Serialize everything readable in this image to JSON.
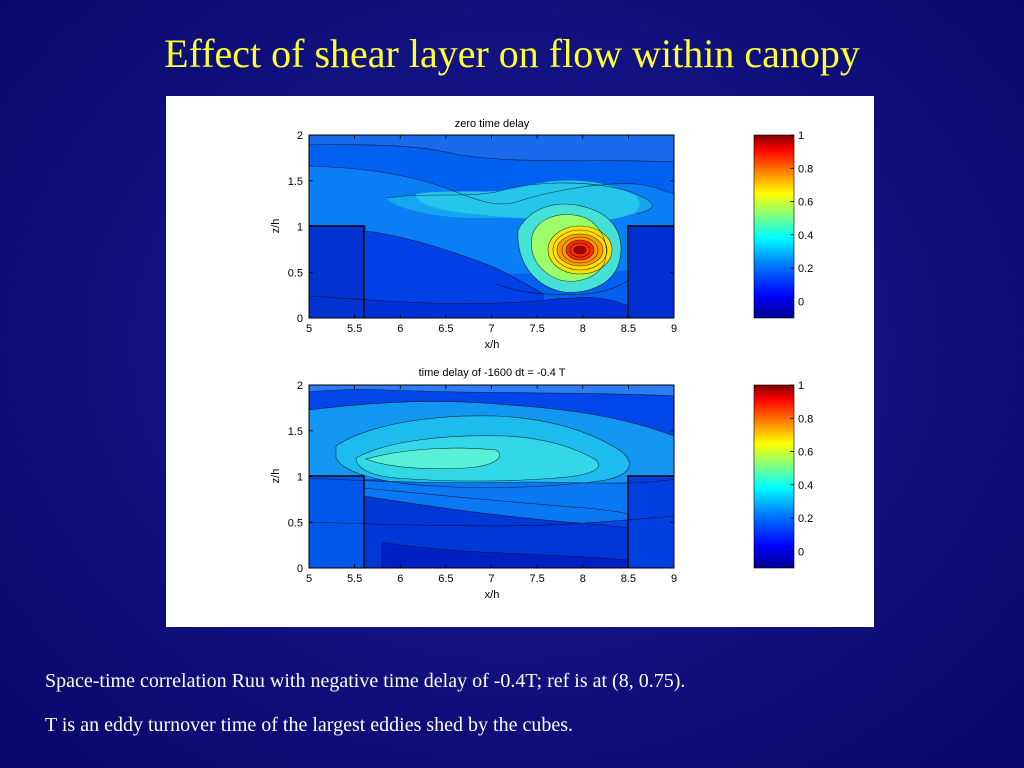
{
  "slide": {
    "title": "Effect of shear layer on flow within canopy",
    "captions": [
      "Space-time correlation Ruu with negative time delay of -0.4T; ref is at (8, 0.75).",
      "T is an eddy turnover time of the largest eddies shed by the cubes."
    ]
  },
  "colors": {
    "background": "#10107e",
    "title": "#ffff33",
    "caption": "#ffffff",
    "colormap": [
      "#00008f",
      "#0000ff",
      "#0080ff",
      "#00ffff",
      "#80ff80",
      "#ffff00",
      "#ff8000",
      "#ff0000",
      "#800000"
    ]
  },
  "chart_data": [
    {
      "type": "heatmap",
      "title": "zero time delay",
      "xlabel": "x/h",
      "ylabel": "z/h",
      "xlim": [
        5,
        9
      ],
      "ylim": [
        0,
        2
      ],
      "xticks": [
        "5",
        "5.5",
        "6",
        "6.5",
        "7",
        "7.5",
        "8",
        "8.5",
        "9"
      ],
      "yticks": [
        "0",
        "0.5",
        "1",
        "1.5",
        "2"
      ],
      "colorbar": {
        "ticks": [
          "0",
          "0.2",
          "0.4",
          "0.6",
          "0.8",
          "1"
        ],
        "range": [
          -0.1,
          1
        ]
      },
      "cubes": [
        {
          "x": [
            5,
            5.55
          ],
          "z": [
            0,
            1
          ]
        },
        {
          "x": [
            8.5,
            9
          ],
          "z": [
            0,
            1
          ]
        }
      ],
      "peak": {
        "x": 8,
        "z": 0.75,
        "value": 1.0
      }
    },
    {
      "type": "heatmap",
      "title": "time delay of -1600 dt = -0.4 T",
      "xlabel": "x/h",
      "ylabel": "z/h",
      "xlim": [
        5,
        9
      ],
      "ylim": [
        0,
        2
      ],
      "xticks": [
        "5",
        "5.5",
        "6",
        "6.5",
        "7",
        "7.5",
        "8",
        "8.5",
        "9"
      ],
      "yticks": [
        "0",
        "0.5",
        "1",
        "1.5",
        "2"
      ],
      "colorbar": {
        "ticks": [
          "0",
          "0.2",
          "0.4",
          "0.6",
          "0.8",
          "1"
        ],
        "range": [
          -0.1,
          1
        ]
      },
      "cubes": [
        {
          "x": [
            5,
            5.55
          ],
          "z": [
            0,
            1
          ]
        },
        {
          "x": [
            8.5,
            9
          ],
          "z": [
            0,
            1
          ]
        }
      ],
      "peak": {
        "x": 6.7,
        "z": 1.2,
        "value": 0.32
      }
    }
  ]
}
